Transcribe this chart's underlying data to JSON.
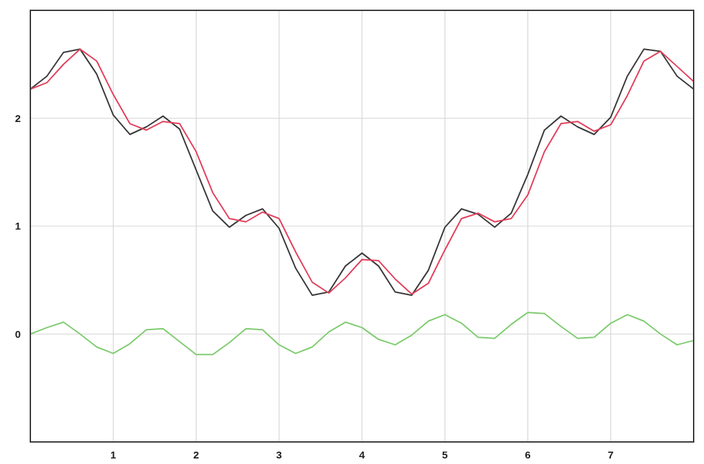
{
  "chart_data": {
    "type": "line",
    "x": [
      0,
      0.2,
      0.4,
      0.6,
      0.8,
      1,
      1.2,
      1.4,
      1.6,
      1.8,
      2,
      2.2,
      2.4,
      2.6,
      2.8,
      3,
      3.2,
      3.4,
      3.6,
      3.8,
      4,
      4.2,
      4.4,
      4.6,
      4.8,
      5,
      5.2,
      5.4,
      5.6,
      5.8,
      6,
      6.2,
      6.4,
      6.6,
      6.8,
      7,
      7.2,
      7.4,
      7.6,
      7.8,
      8
    ],
    "xlim": [
      0,
      8
    ],
    "ylim": [
      -1,
      3
    ],
    "xticks": [
      1,
      2,
      3,
      4,
      5,
      6,
      7
    ],
    "yticks": [
      0,
      1,
      2
    ],
    "grid": true,
    "series": [
      {
        "color": "#3a3a3a",
        "values": [
          2.27,
          2.39,
          2.61,
          2.64,
          2.41,
          2.03,
          1.85,
          1.92,
          2.02,
          1.9,
          1.52,
          1.14,
          0.99,
          1.1,
          1.16,
          0.98,
          0.61,
          0.36,
          0.39,
          0.63,
          0.75,
          0.63,
          0.39,
          0.36,
          0.59,
          0.99,
          1.16,
          1.11,
          0.99,
          1.12,
          1.48,
          1.89,
          2.02,
          1.92,
          1.85,
          2.01,
          2.39,
          2.64,
          2.62,
          2.39,
          2.27
        ]
      },
      {
        "color": "#e2405c",
        "values": [
          2.27,
          2.33,
          2.5,
          2.64,
          2.53,
          2.22,
          1.95,
          1.89,
          1.97,
          1.95,
          1.69,
          1.31,
          1.07,
          1.04,
          1.13,
          1.07,
          0.76,
          0.48,
          0.38,
          0.52,
          0.69,
          0.68,
          0.51,
          0.37,
          0.47,
          0.78,
          1.07,
          1.12,
          1.04,
          1.07,
          1.29,
          1.69,
          1.95,
          1.97,
          1.88,
          1.94,
          2.21,
          2.53,
          2.62,
          2.48,
          2.34
        ]
      },
      {
        "color": "#7fcc70",
        "values": [
          0,
          0.06,
          0.11,
          0,
          -0.12,
          -0.18,
          -0.09,
          0.04,
          0.05,
          -0.07,
          -0.19,
          -0.19,
          -0.08,
          0.05,
          0.04,
          -0.1,
          -0.18,
          -0.12,
          0.02,
          0.11,
          0.06,
          -0.05,
          -0.1,
          -0.01,
          0.12,
          0.18,
          0.1,
          -0.03,
          -0.04,
          0.09,
          0.2,
          0.19,
          0.07,
          -0.04,
          -0.03,
          0.1,
          0.18,
          0.12,
          0,
          -0.1,
          -0.06
        ]
      }
    ]
  }
}
